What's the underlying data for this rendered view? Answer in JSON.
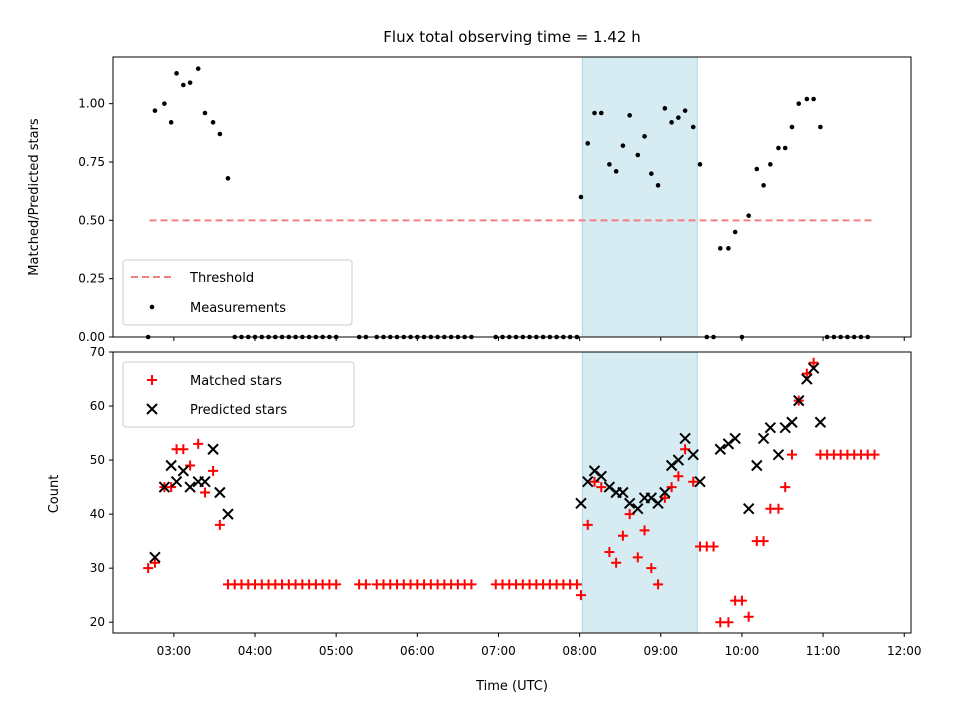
{
  "chart_data": [
    {
      "type": "scatter",
      "panel": "top",
      "title": "Flux total observing time = 1.42 h",
      "ylabel": "Matched/Predicted stars",
      "xlim": [
        "02:15",
        "12:05"
      ],
      "ylim": [
        0,
        1.2
      ],
      "yticks": [
        "0.00",
        "0.25",
        "0.50",
        "0.75",
        "1.00"
      ],
      "legend_position": "bottom-left",
      "highlight_span": [
        "08:02",
        "09:27"
      ],
      "threshold": {
        "name": "Threshold",
        "y": 0.5,
        "x_start": "02:42",
        "x_end": "11:36",
        "color": "#f08080"
      },
      "series": [
        {
          "name": "Measurements",
          "color": "#000000",
          "points": [
            [
              "02:41",
              0.0
            ],
            [
              "02:46",
              0.97
            ],
            [
              "02:53",
              1.0
            ],
            [
              "02:58",
              0.92
            ],
            [
              "03:02",
              1.13
            ],
            [
              "03:07",
              1.08
            ],
            [
              "03:12",
              1.09
            ],
            [
              "03:18",
              1.15
            ],
            [
              "03:23",
              0.96
            ],
            [
              "03:29",
              0.92
            ],
            [
              "03:34",
              0.87
            ],
            [
              "03:40",
              0.68
            ],
            [
              "03:45",
              0.0
            ],
            [
              "03:50",
              0.0
            ],
            [
              "03:55",
              0.0
            ],
            [
              "04:00",
              0.0
            ],
            [
              "04:05",
              0.0
            ],
            [
              "04:10",
              0.0
            ],
            [
              "04:15",
              0.0
            ],
            [
              "04:20",
              0.0
            ],
            [
              "04:25",
              0.0
            ],
            [
              "04:30",
              0.0
            ],
            [
              "04:35",
              0.0
            ],
            [
              "04:40",
              0.0
            ],
            [
              "04:45",
              0.0
            ],
            [
              "04:50",
              0.0
            ],
            [
              "04:55",
              0.0
            ],
            [
              "05:00",
              0.0
            ],
            [
              "05:17",
              0.0
            ],
            [
              "05:22",
              0.0
            ],
            [
              "05:30",
              0.0
            ],
            [
              "05:35",
              0.0
            ],
            [
              "05:40",
              0.0
            ],
            [
              "05:45",
              0.0
            ],
            [
              "05:50",
              0.0
            ],
            [
              "05:55",
              0.0
            ],
            [
              "06:00",
              0.0
            ],
            [
              "06:05",
              0.0
            ],
            [
              "06:10",
              0.0
            ],
            [
              "06:15",
              0.0
            ],
            [
              "06:20",
              0.0
            ],
            [
              "06:25",
              0.0
            ],
            [
              "06:30",
              0.0
            ],
            [
              "06:35",
              0.0
            ],
            [
              "06:40",
              0.0
            ],
            [
              "06:58",
              0.0
            ],
            [
              "07:03",
              0.0
            ],
            [
              "07:08",
              0.0
            ],
            [
              "07:13",
              0.0
            ],
            [
              "07:18",
              0.0
            ],
            [
              "07:23",
              0.0
            ],
            [
              "07:28",
              0.0
            ],
            [
              "07:33",
              0.0
            ],
            [
              "07:38",
              0.0
            ],
            [
              "07:43",
              0.0
            ],
            [
              "07:48",
              0.0
            ],
            [
              "07:53",
              0.0
            ],
            [
              "07:58",
              0.0
            ],
            [
              "08:01",
              0.6
            ],
            [
              "08:06",
              0.83
            ],
            [
              "08:11",
              0.96
            ],
            [
              "08:16",
              0.96
            ],
            [
              "08:22",
              0.74
            ],
            [
              "08:27",
              0.71
            ],
            [
              "08:32",
              0.82
            ],
            [
              "08:37",
              0.95
            ],
            [
              "08:43",
              0.78
            ],
            [
              "08:48",
              0.86
            ],
            [
              "08:53",
              0.7
            ],
            [
              "08:58",
              0.65
            ],
            [
              "09:03",
              0.98
            ],
            [
              "09:08",
              0.92
            ],
            [
              "09:13",
              0.94
            ],
            [
              "09:18",
              0.97
            ],
            [
              "09:24",
              0.9
            ],
            [
              "09:29",
              0.74
            ],
            [
              "09:34",
              0.0
            ],
            [
              "09:39",
              0.0
            ],
            [
              "09:44",
              0.38
            ],
            [
              "09:50",
              0.38
            ],
            [
              "09:55",
              0.45
            ],
            [
              "10:00",
              0.0
            ],
            [
              "10:05",
              0.52
            ],
            [
              "10:11",
              0.72
            ],
            [
              "10:16",
              0.65
            ],
            [
              "10:21",
              0.74
            ],
            [
              "10:27",
              0.81
            ],
            [
              "10:32",
              0.81
            ],
            [
              "10:37",
              0.9
            ],
            [
              "10:42",
              1.0
            ],
            [
              "10:48",
              1.02
            ],
            [
              "10:53",
              1.02
            ],
            [
              "10:58",
              0.9
            ],
            [
              "11:03",
              0.0
            ],
            [
              "11:08",
              0.0
            ],
            [
              "11:13",
              0.0
            ],
            [
              "11:18",
              0.0
            ],
            [
              "11:23",
              0.0
            ],
            [
              "11:28",
              0.0
            ],
            [
              "11:33",
              0.0
            ]
          ]
        }
      ]
    },
    {
      "type": "scatter",
      "panel": "bottom",
      "xlabel": "Time (UTC)",
      "ylabel": "Count",
      "xlim": [
        "02:15",
        "12:05"
      ],
      "ylim": [
        18,
        70
      ],
      "xticks": [
        "03:00",
        "04:00",
        "05:00",
        "06:00",
        "07:00",
        "08:00",
        "09:00",
        "10:00",
        "11:00",
        "12:00"
      ],
      "yticks": [
        "20",
        "30",
        "40",
        "50",
        "60",
        "70"
      ],
      "legend_position": "top-left",
      "highlight_span": [
        "08:02",
        "09:27"
      ],
      "series": [
        {
          "name": "Matched stars",
          "color": "#ff0000",
          "marker": "plus",
          "points": [
            [
              "02:41",
              30
            ],
            [
              "02:46",
              31
            ],
            [
              "02:53",
              45
            ],
            [
              "02:58",
              45
            ],
            [
              "03:02",
              52
            ],
            [
              "03:07",
              52
            ],
            [
              "03:12",
              49
            ],
            [
              "03:18",
              53
            ],
            [
              "03:23",
              44
            ],
            [
              "03:29",
              48
            ],
            [
              "03:34",
              38
            ],
            [
              "03:40",
              27
            ],
            [
              "03:45",
              27
            ],
            [
              "03:50",
              27
            ],
            [
              "03:55",
              27
            ],
            [
              "04:00",
              27
            ],
            [
              "04:05",
              27
            ],
            [
              "04:10",
              27
            ],
            [
              "04:15",
              27
            ],
            [
              "04:20",
              27
            ],
            [
              "04:25",
              27
            ],
            [
              "04:30",
              27
            ],
            [
              "04:35",
              27
            ],
            [
              "04:40",
              27
            ],
            [
              "04:45",
              27
            ],
            [
              "04:50",
              27
            ],
            [
              "04:55",
              27
            ],
            [
              "05:00",
              27
            ],
            [
              "05:17",
              27
            ],
            [
              "05:22",
              27
            ],
            [
              "05:30",
              27
            ],
            [
              "05:35",
              27
            ],
            [
              "05:40",
              27
            ],
            [
              "05:45",
              27
            ],
            [
              "05:50",
              27
            ],
            [
              "05:55",
              27
            ],
            [
              "06:00",
              27
            ],
            [
              "06:05",
              27
            ],
            [
              "06:10",
              27
            ],
            [
              "06:15",
              27
            ],
            [
              "06:20",
              27
            ],
            [
              "06:25",
              27
            ],
            [
              "06:30",
              27
            ],
            [
              "06:35",
              27
            ],
            [
              "06:40",
              27
            ],
            [
              "06:58",
              27
            ],
            [
              "07:03",
              27
            ],
            [
              "07:08",
              27
            ],
            [
              "07:13",
              27
            ],
            [
              "07:18",
              27
            ],
            [
              "07:23",
              27
            ],
            [
              "07:28",
              27
            ],
            [
              "07:33",
              27
            ],
            [
              "07:38",
              27
            ],
            [
              "07:43",
              27
            ],
            [
              "07:48",
              27
            ],
            [
              "07:53",
              27
            ],
            [
              "07:58",
              27
            ],
            [
              "08:01",
              25
            ],
            [
              "08:06",
              38
            ],
            [
              "08:11",
              46
            ],
            [
              "08:16",
              45
            ],
            [
              "08:22",
              33
            ],
            [
              "08:27",
              31
            ],
            [
              "08:32",
              36
            ],
            [
              "08:37",
              40
            ],
            [
              "08:43",
              32
            ],
            [
              "08:48",
              37
            ],
            [
              "08:53",
              30
            ],
            [
              "08:58",
              27
            ],
            [
              "09:03",
              43
            ],
            [
              "09:08",
              45
            ],
            [
              "09:13",
              47
            ],
            [
              "09:18",
              52
            ],
            [
              "09:24",
              46
            ],
            [
              "09:29",
              34
            ],
            [
              "09:34",
              34
            ],
            [
              "09:39",
              34
            ],
            [
              "09:44",
              20
            ],
            [
              "09:50",
              20
            ],
            [
              "09:55",
              24
            ],
            [
              "10:00",
              24
            ],
            [
              "10:05",
              21
            ],
            [
              "10:11",
              35
            ],
            [
              "10:16",
              35
            ],
            [
              "10:21",
              41
            ],
            [
              "10:27",
              41
            ],
            [
              "10:32",
              45
            ],
            [
              "10:37",
              51
            ],
            [
              "10:42",
              61
            ],
            [
              "10:48",
              66
            ],
            [
              "10:53",
              68
            ],
            [
              "10:58",
              51
            ],
            [
              "11:03",
              51
            ],
            [
              "11:08",
              51
            ],
            [
              "11:13",
              51
            ],
            [
              "11:18",
              51
            ],
            [
              "11:23",
              51
            ],
            [
              "11:28",
              51
            ],
            [
              "11:33",
              51
            ],
            [
              "11:38",
              51
            ]
          ]
        },
        {
          "name": "Predicted stars",
          "color": "#000000",
          "marker": "x",
          "points": [
            [
              "02:46",
              32
            ],
            [
              "02:53",
              45
            ],
            [
              "02:58",
              49
            ],
            [
              "03:02",
              46
            ],
            [
              "03:07",
              48
            ],
            [
              "03:12",
              45
            ],
            [
              "03:18",
              46
            ],
            [
              "03:23",
              46
            ],
            [
              "03:29",
              52
            ],
            [
              "03:34",
              44
            ],
            [
              "03:40",
              40
            ],
            [
              "08:01",
              42
            ],
            [
              "08:06",
              46
            ],
            [
              "08:11",
              48
            ],
            [
              "08:16",
              47
            ],
            [
              "08:22",
              45
            ],
            [
              "08:27",
              44
            ],
            [
              "08:32",
              44
            ],
            [
              "08:37",
              42
            ],
            [
              "08:43",
              41
            ],
            [
              "08:48",
              43
            ],
            [
              "08:53",
              43
            ],
            [
              "08:58",
              42
            ],
            [
              "09:03",
              44
            ],
            [
              "09:08",
              49
            ],
            [
              "09:13",
              50
            ],
            [
              "09:18",
              54
            ],
            [
              "09:24",
              51
            ],
            [
              "09:29",
              46
            ],
            [
              "09:44",
              52
            ],
            [
              "09:50",
              53
            ],
            [
              "09:55",
              54
            ],
            [
              "10:05",
              41
            ],
            [
              "10:11",
              49
            ],
            [
              "10:16",
              54
            ],
            [
              "10:21",
              56
            ],
            [
              "10:27",
              51
            ],
            [
              "10:32",
              56
            ],
            [
              "10:37",
              57
            ],
            [
              "10:42",
              61
            ],
            [
              "10:48",
              65
            ],
            [
              "10:53",
              67
            ],
            [
              "10:58",
              57
            ]
          ]
        }
      ]
    }
  ]
}
